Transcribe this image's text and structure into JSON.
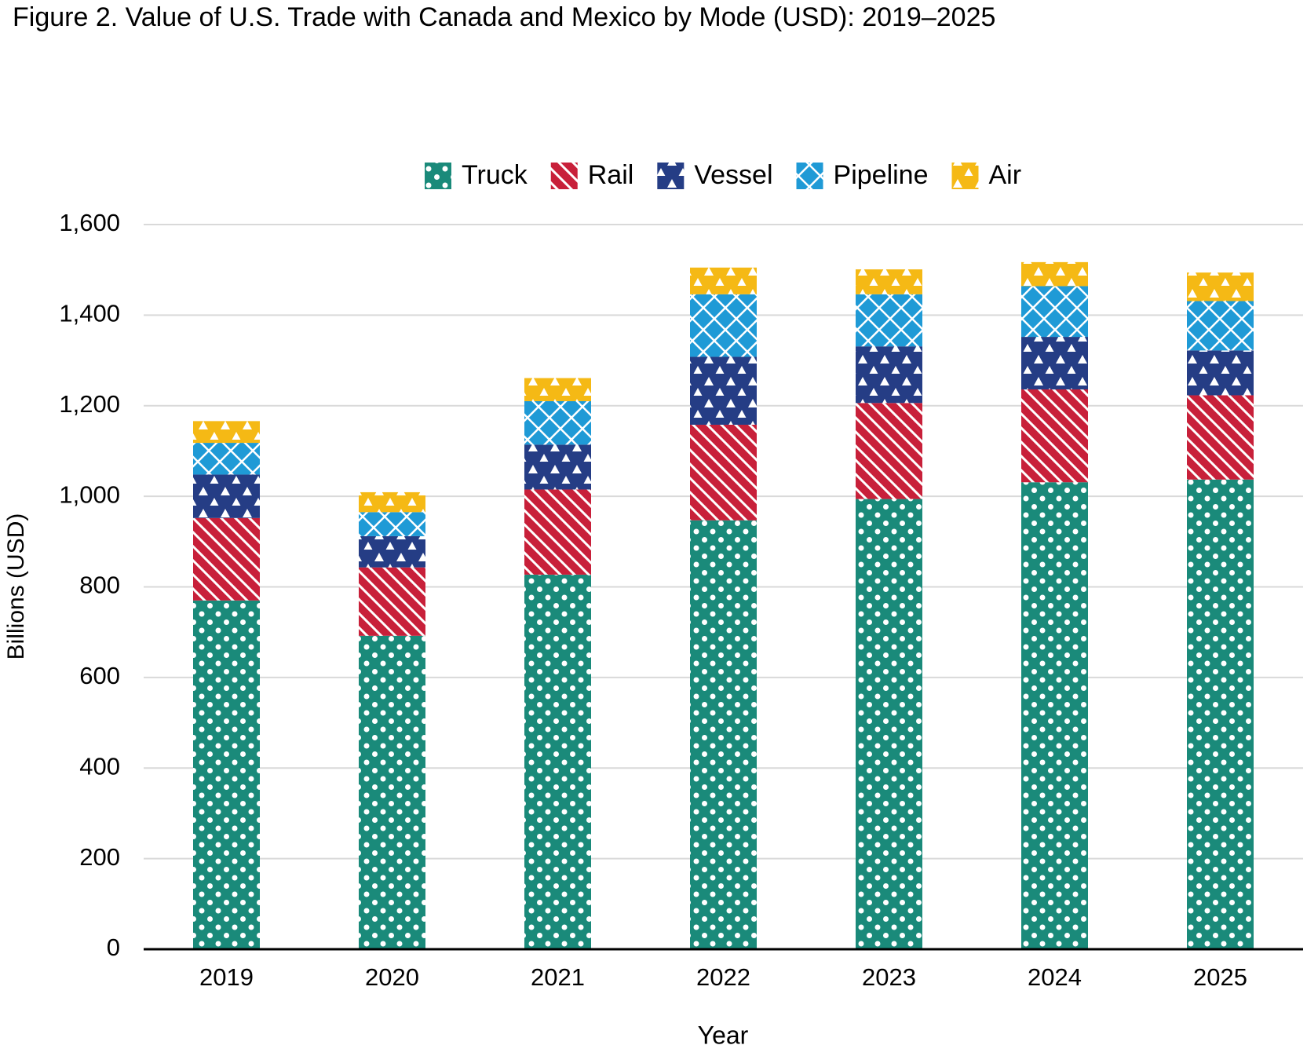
{
  "chart_data": {
    "type": "stacked_bar",
    "title": "Figure 2. Value of U.S. Trade with Canada and Mexico by Mode (USD): 2019–2025",
    "x_label": "Year",
    "y_label": "Billions (USD)",
    "categories": [
      "2019",
      "2020",
      "2021",
      "2022",
      "2023",
      "2024",
      "2025"
    ],
    "series": [
      {
        "name": "Truck",
        "color": "#1a8a7a",
        "values": [
          770,
          692,
          827,
          947,
          994,
          1031,
          1037
        ]
      },
      {
        "name": "Rail",
        "color": "#c8203a",
        "values": [
          182,
          151,
          188,
          211,
          212,
          205,
          186
        ]
      },
      {
        "name": "Vessel",
        "color": "#253d85",
        "values": [
          96,
          69,
          99,
          150,
          125,
          116,
          99
        ]
      },
      {
        "name": "Pipeline",
        "color": "#1f9ad6",
        "values": [
          70,
          53,
          96,
          138,
          115,
          112,
          109
        ]
      },
      {
        "name": "Air",
        "color": "#f5b915",
        "values": [
          48,
          44,
          51,
          59,
          55,
          53,
          63
        ]
      }
    ],
    "ylim": [
      0,
      1600
    ],
    "yticks": [
      0,
      200,
      400,
      600,
      800,
      {
        "value": 1000,
        "label": "1,000"
      },
      {
        "value": 1200,
        "label": "1,200"
      },
      {
        "value": 1400,
        "label": "1,400"
      },
      {
        "value": 1600,
        "label": "1,600"
      }
    ],
    "grid": true,
    "legend": "top"
  }
}
